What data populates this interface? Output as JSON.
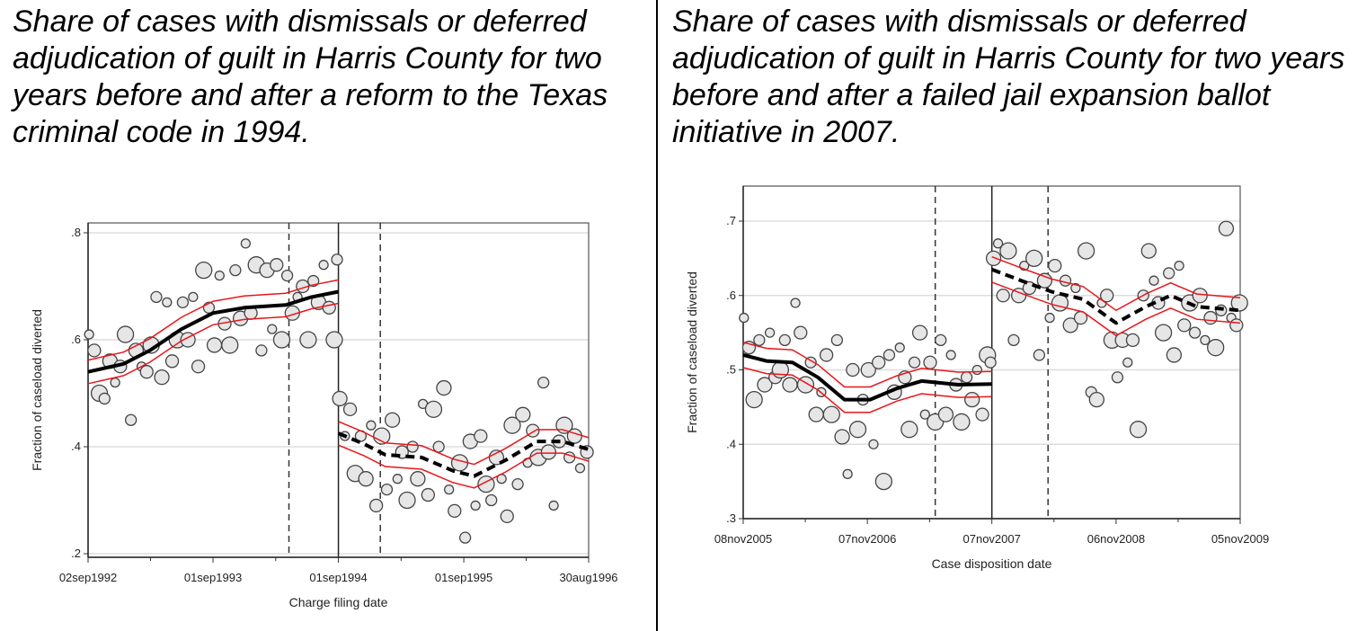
{
  "charts_colors": {
    "points_fill": "#e6e6e6",
    "points_stroke": "#444444",
    "fit": "#000000",
    "ci": "#e8161b",
    "grid": "#dddddd"
  },
  "chart_data": [
    {
      "type": "scatter",
      "title": "Share of cases with dismissals or deferred adjudication of guilt in Harris County for two years before and after a reform to the Texas criminal code in 1994.",
      "xlabel": "Charge filing date",
      "ylabel": "Fraction of caseload diverted",
      "xlim": [
        "1992-09-02",
        "1996-08-30"
      ],
      "ylim": [
        0.2,
        0.8
      ],
      "yticks": [
        0.2,
        0.4,
        0.6,
        0.8
      ],
      "ytick_labels": [
        ".2",
        ".4",
        ".6",
        ".8"
      ],
      "xticks": [
        "1992-09-02",
        "1993-09-01",
        "1994-09-01",
        "1995-09-01",
        "1996-08-30"
      ],
      "xtick_labels": [
        "02sep1992",
        "01sep1993",
        "01sep1994",
        "01sep1995",
        "30aug1996"
      ],
      "grid": true,
      "cutoff": "1994-09-01",
      "dashed_lines": [
        "1994-04-10",
        "1995-01-01"
      ],
      "points": [
        [
          "1992-09-05",
          0.61
        ],
        [
          "1992-09-20",
          0.58
        ],
        [
          "1992-10-05",
          0.5
        ],
        [
          "1992-10-20",
          0.49
        ],
        [
          "1992-11-05",
          0.56
        ],
        [
          "1992-11-20",
          0.52
        ],
        [
          "1992-12-05",
          0.55
        ],
        [
          "1992-12-20",
          0.61
        ],
        [
          "1993-01-05",
          0.45
        ],
        [
          "1993-01-20",
          0.58
        ],
        [
          "1993-02-05",
          0.55
        ],
        [
          "1993-02-20",
          0.54
        ],
        [
          "1993-03-05",
          0.59
        ],
        [
          "1993-03-20",
          0.68
        ],
        [
          "1993-04-05",
          0.53
        ],
        [
          "1993-04-20",
          0.67
        ],
        [
          "1993-05-05",
          0.56
        ],
        [
          "1993-05-20",
          0.6
        ],
        [
          "1993-06-05",
          0.67
        ],
        [
          "1993-06-20",
          0.6
        ],
        [
          "1993-07-05",
          0.68
        ],
        [
          "1993-07-20",
          0.55
        ],
        [
          "1993-08-05",
          0.73
        ],
        [
          "1993-08-20",
          0.66
        ],
        [
          "1993-09-05",
          0.59
        ],
        [
          "1993-09-20",
          0.72
        ],
        [
          "1993-10-05",
          0.63
        ],
        [
          "1993-10-20",
          0.59
        ],
        [
          "1993-11-05",
          0.73
        ],
        [
          "1993-11-20",
          0.64
        ],
        [
          "1993-12-05",
          0.78
        ],
        [
          "1993-12-20",
          0.65
        ],
        [
          "1994-01-05",
          0.74
        ],
        [
          "1994-01-20",
          0.58
        ],
        [
          "1994-02-05",
          0.73
        ],
        [
          "1994-02-20",
          0.62
        ],
        [
          "1994-03-05",
          0.74
        ],
        [
          "1994-03-20",
          0.6
        ],
        [
          "1994-04-05",
          0.72
        ],
        [
          "1994-04-20",
          0.65
        ],
        [
          "1994-05-05",
          0.68
        ],
        [
          "1994-05-20",
          0.7
        ],
        [
          "1994-06-05",
          0.6
        ],
        [
          "1994-06-20",
          0.71
        ],
        [
          "1994-07-05",
          0.67
        ],
        [
          "1994-07-20",
          0.74
        ],
        [
          "1994-08-05",
          0.66
        ],
        [
          "1994-08-20",
          0.6
        ],
        [
          "1994-08-28",
          0.75
        ],
        [
          "1994-09-05",
          0.49
        ],
        [
          "1994-09-20",
          0.42
        ],
        [
          "1994-10-05",
          0.47
        ],
        [
          "1994-10-20",
          0.35
        ],
        [
          "1994-11-05",
          0.42
        ],
        [
          "1994-11-20",
          0.34
        ],
        [
          "1994-12-05",
          0.44
        ],
        [
          "1994-12-20",
          0.29
        ],
        [
          "1995-01-05",
          0.42
        ],
        [
          "1995-01-20",
          0.32
        ],
        [
          "1995-02-05",
          0.45
        ],
        [
          "1995-02-20",
          0.34
        ],
        [
          "1995-03-05",
          0.39
        ],
        [
          "1995-03-20",
          0.3
        ],
        [
          "1995-04-05",
          0.4
        ],
        [
          "1995-04-20",
          0.34
        ],
        [
          "1995-05-05",
          0.48
        ],
        [
          "1995-05-20",
          0.31
        ],
        [
          "1995-06-05",
          0.47
        ],
        [
          "1995-06-20",
          0.4
        ],
        [
          "1995-07-05",
          0.51
        ],
        [
          "1995-07-20",
          0.32
        ],
        [
          "1995-08-05",
          0.28
        ],
        [
          "1995-08-20",
          0.37
        ],
        [
          "1995-09-05",
          0.23
        ],
        [
          "1995-09-20",
          0.41
        ],
        [
          "1995-10-05",
          0.29
        ],
        [
          "1995-10-20",
          0.42
        ],
        [
          "1995-11-05",
          0.33
        ],
        [
          "1995-11-20",
          0.3
        ],
        [
          "1995-12-05",
          0.38
        ],
        [
          "1995-12-20",
          0.34
        ],
        [
          "1996-01-05",
          0.27
        ],
        [
          "1996-01-20",
          0.44
        ],
        [
          "1996-02-05",
          0.33
        ],
        [
          "1996-02-20",
          0.46
        ],
        [
          "1996-03-05",
          0.37
        ],
        [
          "1996-03-20",
          0.43
        ],
        [
          "1996-04-05",
          0.38
        ],
        [
          "1996-04-20",
          0.52
        ],
        [
          "1996-05-05",
          0.39
        ],
        [
          "1996-05-20",
          0.29
        ],
        [
          "1996-06-05",
          0.41
        ],
        [
          "1996-06-20",
          0.44
        ],
        [
          "1996-07-05",
          0.38
        ],
        [
          "1996-07-20",
          0.42
        ],
        [
          "1996-08-05",
          0.36
        ],
        [
          "1996-08-25",
          0.39
        ]
      ],
      "fit_pre": [
        [
          "1992-09-02",
          0.54
        ],
        [
          "1992-12-15",
          0.555
        ],
        [
          "1993-03-01",
          0.58
        ],
        [
          "1993-06-01",
          0.62
        ],
        [
          "1993-09-01",
          0.65
        ],
        [
          "1993-12-01",
          0.66
        ],
        [
          "1994-04-01",
          0.665
        ],
        [
          "1994-06-15",
          0.68
        ],
        [
          "1994-09-01",
          0.69
        ]
      ],
      "fit_post": [
        [
          "1994-09-01",
          0.425
        ],
        [
          "1994-11-15",
          0.405
        ],
        [
          "1995-01-15",
          0.385
        ],
        [
          "1995-05-01",
          0.38
        ],
        [
          "1995-08-01",
          0.355
        ],
        [
          "1995-10-01",
          0.345
        ],
        [
          "1996-01-01",
          0.375
        ],
        [
          "1996-04-01",
          0.41
        ],
        [
          "1996-06-15",
          0.41
        ],
        [
          "1996-08-30",
          0.395
        ]
      ],
      "ci_halfwidth": 0.022
    },
    {
      "type": "scatter",
      "title": "Share of cases with dismissals or deferred adjudication of guilt in Harris County for two years before and after a failed jail expansion ballot initiative in 2007.",
      "xlabel": "Case disposition date",
      "ylabel": "Fraction of caseload diverted",
      "xlim": [
        "2005-11-08",
        "2009-11-05"
      ],
      "ylim": [
        0.3,
        0.75
      ],
      "yticks": [
        0.3,
        0.4,
        0.5,
        0.6,
        0.7
      ],
      "ytick_labels": [
        ".3",
        ".4",
        ".5",
        ".6",
        ".7"
      ],
      "xticks": [
        "2005-11-08",
        "2006-11-07",
        "2007-11-07",
        "2008-11-06",
        "2009-11-05"
      ],
      "xtick_labels": [
        "08nov2005",
        "07nov2006",
        "07nov2007",
        "06nov2008",
        "05nov2009"
      ],
      "grid": true,
      "cutoff": "2007-11-07",
      "dashed_lines": [
        "2007-05-25",
        "2008-04-20"
      ],
      "points": [
        [
          "2005-11-10",
          0.57
        ],
        [
          "2005-11-25",
          0.53
        ],
        [
          "2005-12-10",
          0.46
        ],
        [
          "2005-12-25",
          0.54
        ],
        [
          "2006-01-10",
          0.48
        ],
        [
          "2006-01-25",
          0.55
        ],
        [
          "2006-02-10",
          0.49
        ],
        [
          "2006-02-25",
          0.5
        ],
        [
          "2006-03-10",
          0.54
        ],
        [
          "2006-03-25",
          0.48
        ],
        [
          "2006-04-10",
          0.59
        ],
        [
          "2006-04-25",
          0.55
        ],
        [
          "2006-05-10",
          0.48
        ],
        [
          "2006-05-25",
          0.51
        ],
        [
          "2006-06-10",
          0.44
        ],
        [
          "2006-06-25",
          0.47
        ],
        [
          "2006-07-10",
          0.52
        ],
        [
          "2006-07-25",
          0.44
        ],
        [
          "2006-08-10",
          0.54
        ],
        [
          "2006-08-25",
          0.41
        ],
        [
          "2006-09-10",
          0.36
        ],
        [
          "2006-09-25",
          0.5
        ],
        [
          "2006-10-10",
          0.42
        ],
        [
          "2006-10-25",
          0.46
        ],
        [
          "2006-11-10",
          0.5
        ],
        [
          "2006-11-25",
          0.4
        ],
        [
          "2006-12-10",
          0.51
        ],
        [
          "2006-12-25",
          0.35
        ],
        [
          "2007-01-10",
          0.52
        ],
        [
          "2007-01-25",
          0.47
        ],
        [
          "2007-02-10",
          0.53
        ],
        [
          "2007-02-25",
          0.49
        ],
        [
          "2007-03-10",
          0.42
        ],
        [
          "2007-03-25",
          0.51
        ],
        [
          "2007-04-10",
          0.55
        ],
        [
          "2007-04-25",
          0.44
        ],
        [
          "2007-05-10",
          0.51
        ],
        [
          "2007-05-25",
          0.43
        ],
        [
          "2007-06-10",
          0.54
        ],
        [
          "2007-06-25",
          0.44
        ],
        [
          "2007-07-10",
          0.52
        ],
        [
          "2007-07-25",
          0.48
        ],
        [
          "2007-08-10",
          0.43
        ],
        [
          "2007-08-25",
          0.49
        ],
        [
          "2007-09-10",
          0.46
        ],
        [
          "2007-09-25",
          0.5
        ],
        [
          "2007-10-10",
          0.44
        ],
        [
          "2007-10-25",
          0.52
        ],
        [
          "2007-11-03",
          0.51
        ],
        [
          "2007-11-12",
          0.65
        ],
        [
          "2007-11-25",
          0.67
        ],
        [
          "2007-12-10",
          0.6
        ],
        [
          "2007-12-25",
          0.66
        ],
        [
          "2008-01-10",
          0.54
        ],
        [
          "2008-01-25",
          0.6
        ],
        [
          "2008-02-10",
          0.64
        ],
        [
          "2008-02-25",
          0.61
        ],
        [
          "2008-03-10",
          0.65
        ],
        [
          "2008-03-25",
          0.52
        ],
        [
          "2008-04-10",
          0.62
        ],
        [
          "2008-04-25",
          0.57
        ],
        [
          "2008-05-10",
          0.64
        ],
        [
          "2008-05-25",
          0.59
        ],
        [
          "2008-06-10",
          0.62
        ],
        [
          "2008-06-25",
          0.56
        ],
        [
          "2008-07-10",
          0.61
        ],
        [
          "2008-07-25",
          0.57
        ],
        [
          "2008-08-10",
          0.66
        ],
        [
          "2008-08-25",
          0.47
        ],
        [
          "2008-09-10",
          0.46
        ],
        [
          "2008-09-25",
          0.59
        ],
        [
          "2008-10-10",
          0.6
        ],
        [
          "2008-10-25",
          0.54
        ],
        [
          "2008-11-10",
          0.49
        ],
        [
          "2008-11-25",
          0.54
        ],
        [
          "2008-12-10",
          0.51
        ],
        [
          "2008-12-25",
          0.54
        ],
        [
          "2009-01-10",
          0.42
        ],
        [
          "2009-01-25",
          0.6
        ],
        [
          "2009-02-10",
          0.66
        ],
        [
          "2009-02-25",
          0.62
        ],
        [
          "2009-03-10",
          0.59
        ],
        [
          "2009-03-25",
          0.55
        ],
        [
          "2009-04-10",
          0.63
        ],
        [
          "2009-04-25",
          0.52
        ],
        [
          "2009-05-10",
          0.64
        ],
        [
          "2009-05-25",
          0.56
        ],
        [
          "2009-06-10",
          0.59
        ],
        [
          "2009-06-25",
          0.55
        ],
        [
          "2009-07-10",
          0.6
        ],
        [
          "2009-07-25",
          0.54
        ],
        [
          "2009-08-10",
          0.57
        ],
        [
          "2009-08-25",
          0.53
        ],
        [
          "2009-09-10",
          0.58
        ],
        [
          "2009-09-25",
          0.69
        ],
        [
          "2009-10-10",
          0.57
        ],
        [
          "2009-10-25",
          0.56
        ],
        [
          "2009-11-03",
          0.59
        ]
      ],
      "fit_pre": [
        [
          "2005-11-08",
          0.52
        ],
        [
          "2006-01-15",
          0.512
        ],
        [
          "2006-04-01",
          0.51
        ],
        [
          "2006-06-15",
          0.49
        ],
        [
          "2006-09-01",
          0.46
        ],
        [
          "2006-11-15",
          0.46
        ],
        [
          "2007-02-01",
          0.475
        ],
        [
          "2007-04-15",
          0.485
        ],
        [
          "2007-08-01",
          0.48
        ],
        [
          "2007-11-07",
          0.481
        ]
      ],
      "fit_post": [
        [
          "2007-11-07",
          0.635
        ],
        [
          "2008-02-01",
          0.62
        ],
        [
          "2008-05-01",
          0.605
        ],
        [
          "2008-08-01",
          0.595
        ],
        [
          "2008-11-06",
          0.563
        ],
        [
          "2009-02-01",
          0.585
        ],
        [
          "2009-04-15",
          0.6
        ],
        [
          "2009-07-01",
          0.585
        ],
        [
          "2009-11-05",
          0.58
        ]
      ],
      "ci_halfwidth": 0.017
    }
  ]
}
